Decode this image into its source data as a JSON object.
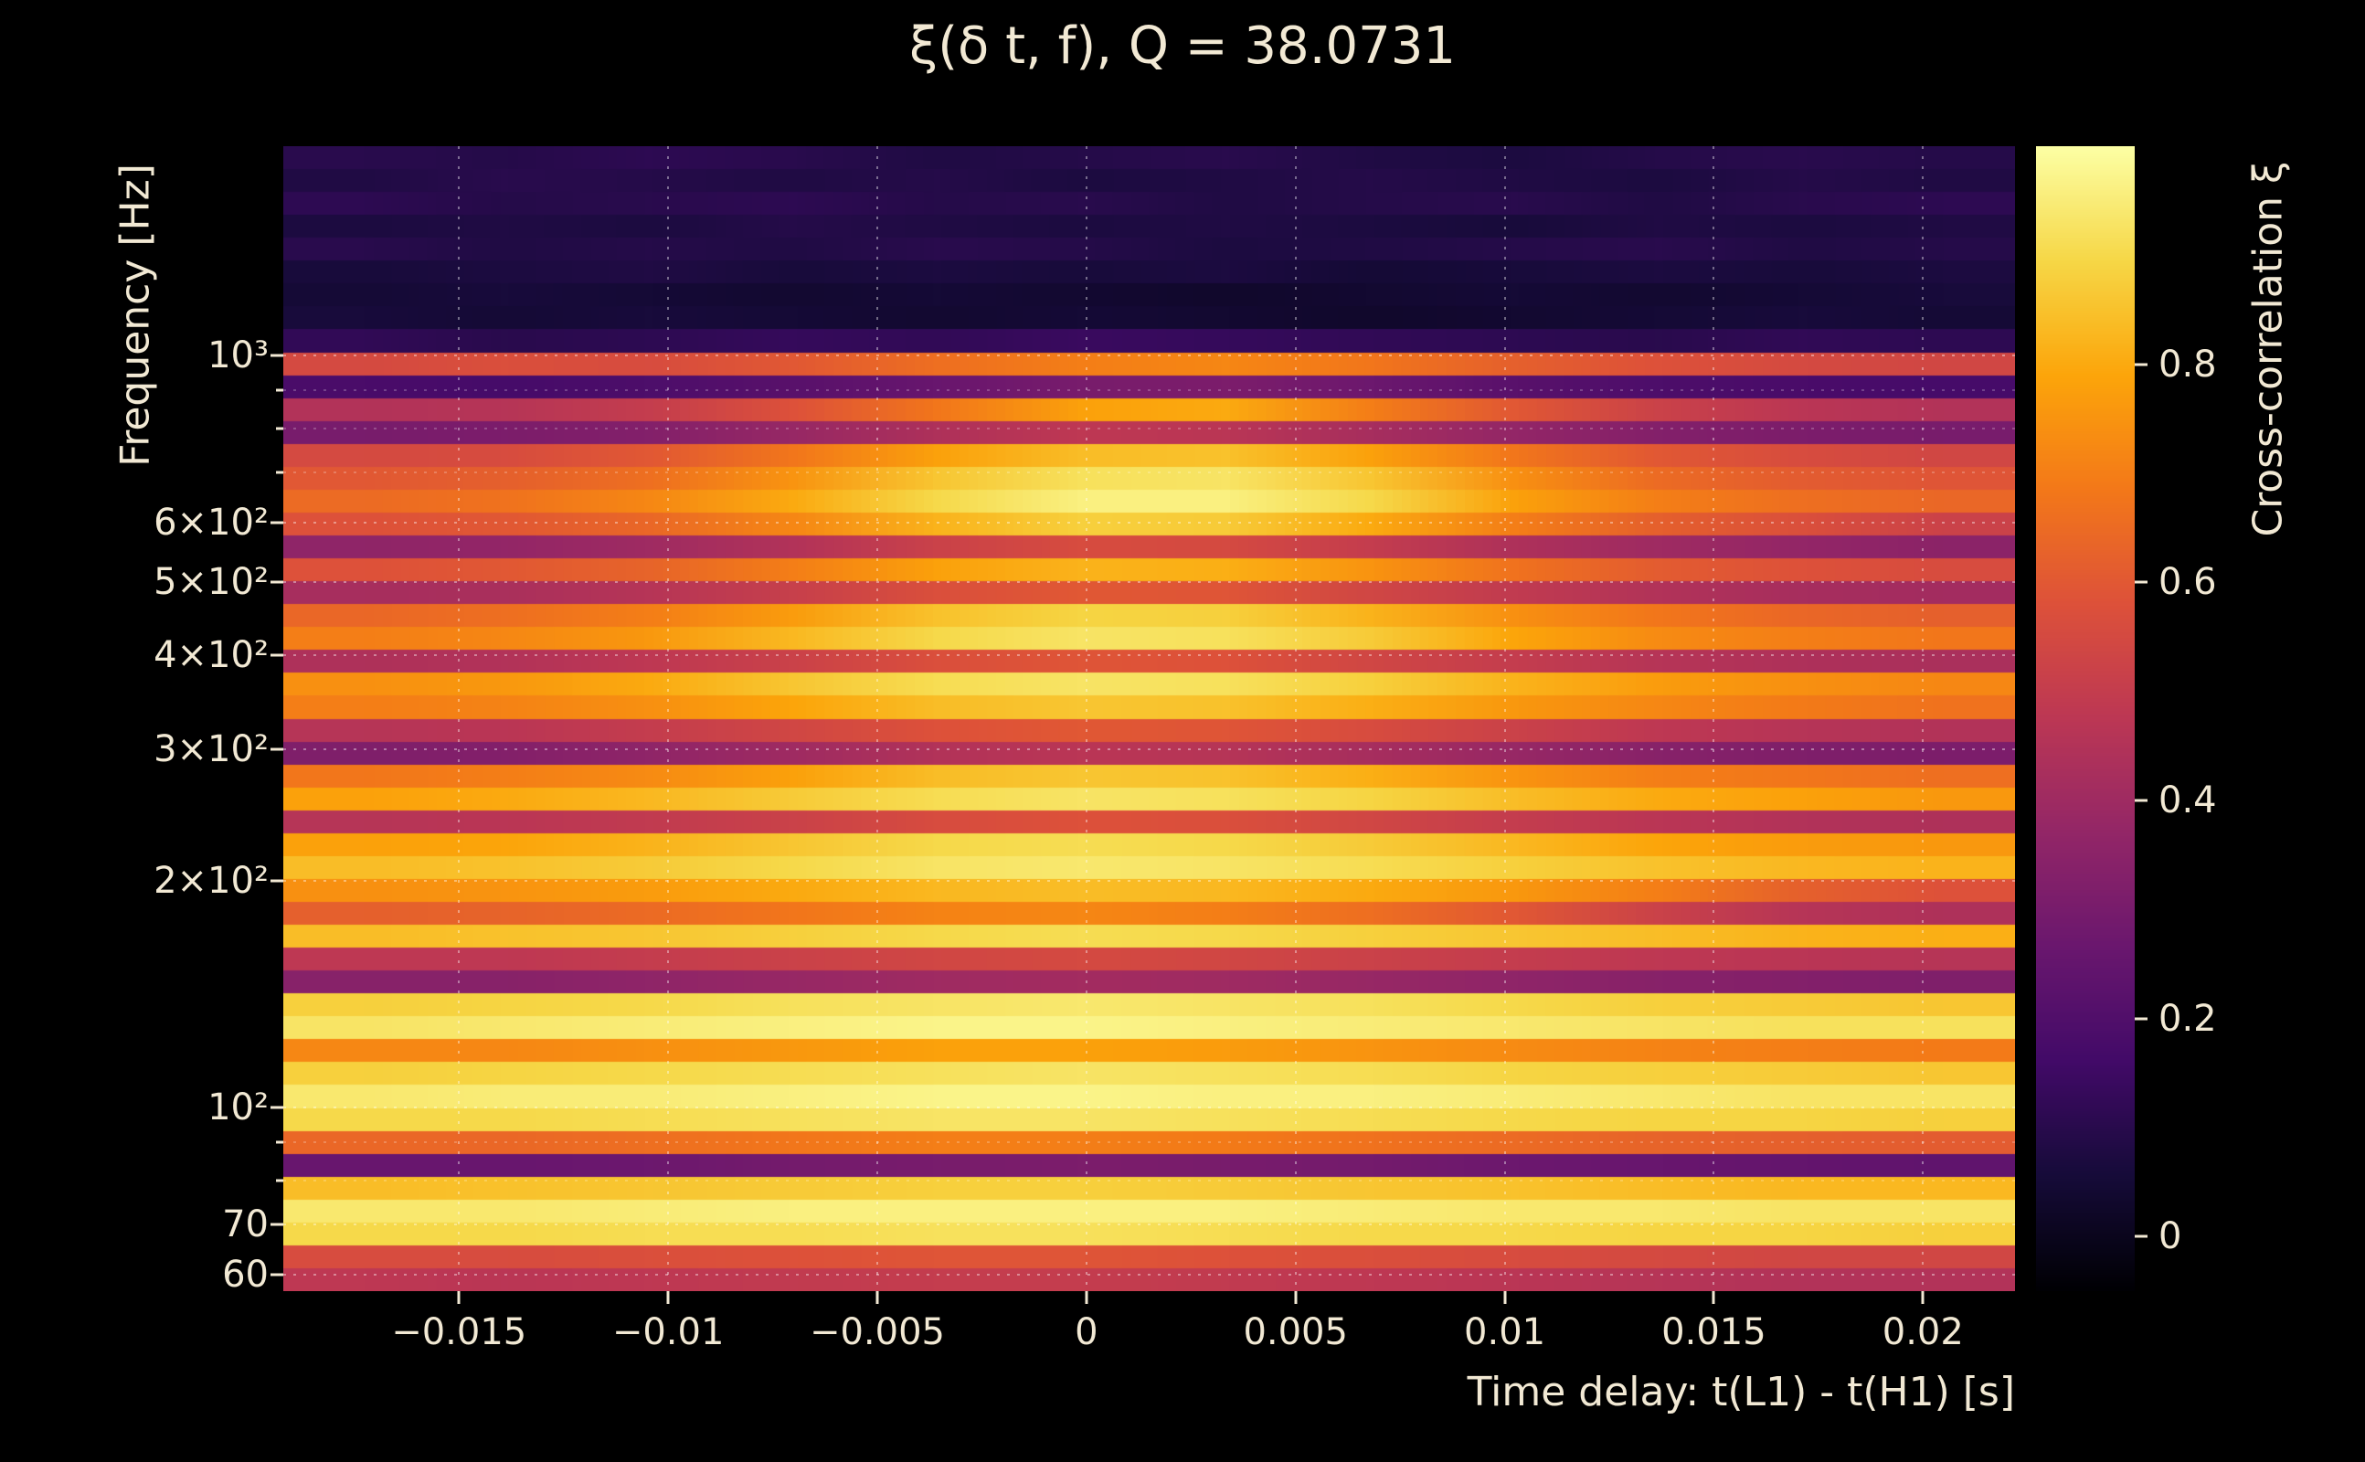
{
  "figure": {
    "background": "#000000",
    "text_color": "#f2e9d4",
    "gridline_style": "dotted"
  },
  "chart_data": {
    "type": "heatmap",
    "title": "ξ(δ t, f), Q = 38.0731",
    "xlabel": "Time delay: t(L1) - t(H1) [s]",
    "ylabel": "Frequency [Hz]",
    "colorbar_label": "Cross-correlation ξ",
    "x_range": [
      -0.0192,
      0.0222
    ],
    "y_range_hz": [
      57,
      1900
    ],
    "y_scale": "log",
    "value_range": [
      -0.05,
      1.0
    ],
    "colormap": "inferno",
    "grid": "dotted",
    "x_ticks": [
      {
        "value": -0.015,
        "label": "−0.015"
      },
      {
        "value": -0.01,
        "label": "−0.01"
      },
      {
        "value": -0.005,
        "label": "−0.005"
      },
      {
        "value": 0,
        "label": "0"
      },
      {
        "value": 0.005,
        "label": "0.005"
      },
      {
        "value": 0.01,
        "label": "0.01"
      },
      {
        "value": 0.015,
        "label": "0.015"
      },
      {
        "value": 0.02,
        "label": "0.02"
      }
    ],
    "y_ticks": [
      {
        "value": 1000,
        "label": "10³"
      },
      {
        "value": 600,
        "label": "6×10²"
      },
      {
        "value": 500,
        "label": "5×10²"
      },
      {
        "value": 400,
        "label": "4×10²"
      },
      {
        "value": 300,
        "label": "3×10²"
      },
      {
        "value": 200,
        "label": "2×10²"
      },
      {
        "value": 100,
        "label": "10²"
      },
      {
        "value": 70,
        "label": "70"
      },
      {
        "value": 60,
        "label": "60"
      }
    ],
    "y_minor_gridlines": [
      900,
      800,
      700,
      90,
      80
    ],
    "colorbar_ticks": [
      {
        "value": 0,
        "label": "0"
      },
      {
        "value": 0.2,
        "label": "0.2"
      },
      {
        "value": 0.4,
        "label": "0.4"
      },
      {
        "value": 0.6,
        "label": "0.6"
      },
      {
        "value": 0.8,
        "label": "0.8"
      }
    ],
    "colormap_anchors": [
      [
        0,
        0,
        4
      ],
      [
        22,
        11,
        57
      ],
      [
        66,
        10,
        104
      ],
      [
        106,
        23,
        110
      ],
      [
        147,
        38,
        103
      ],
      [
        188,
        55,
        84
      ],
      [
        221,
        81,
        58
      ],
      [
        243,
        120,
        25
      ],
      [
        252,
        165,
        10
      ],
      [
        246,
        215,
        70
      ],
      [
        252,
        255,
        164
      ]
    ],
    "values": [
      [
        0.1,
        0.09,
        0.11,
        0.1,
        0.08,
        0.09,
        0.1,
        0.08,
        0.07,
        0.09,
        0.1,
        0.09
      ],
      [
        0.08,
        0.1,
        0.09,
        0.08,
        0.09,
        0.07,
        0.08,
        0.09,
        0.08,
        0.07,
        0.09,
        0.08
      ],
      [
        0.11,
        0.09,
        0.1,
        0.11,
        0.09,
        0.1,
        0.08,
        0.09,
        0.1,
        0.08,
        0.1,
        0.11
      ],
      [
        0.07,
        0.08,
        0.07,
        0.09,
        0.08,
        0.07,
        0.08,
        0.07,
        0.06,
        0.08,
        0.07,
        0.08
      ],
      [
        0.1,
        0.08,
        0.09,
        0.08,
        0.1,
        0.09,
        0.07,
        0.08,
        0.09,
        0.1,
        0.08,
        0.09
      ],
      [
        0.06,
        0.07,
        0.08,
        0.06,
        0.07,
        0.06,
        0.07,
        0.05,
        0.06,
        0.07,
        0.06,
        0.07
      ],
      [
        0.05,
        0.06,
        0.05,
        0.04,
        0.05,
        0.04,
        0.03,
        0.04,
        0.05,
        0.04,
        0.05,
        0.06
      ],
      [
        0.06,
        0.05,
        0.06,
        0.05,
        0.04,
        0.05,
        0.04,
        0.03,
        0.04,
        0.05,
        0.06,
        0.05
      ],
      [
        0.12,
        0.1,
        0.11,
        0.13,
        0.12,
        0.14,
        0.13,
        0.12,
        0.11,
        0.1,
        0.12,
        0.11
      ],
      [
        0.55,
        0.57,
        0.56,
        0.6,
        0.66,
        0.7,
        0.72,
        0.68,
        0.62,
        0.58,
        0.55,
        0.54
      ],
      [
        0.18,
        0.17,
        0.19,
        0.22,
        0.26,
        0.3,
        0.31,
        0.27,
        0.22,
        0.19,
        0.18,
        0.17
      ],
      [
        0.45,
        0.46,
        0.5,
        0.58,
        0.68,
        0.78,
        0.8,
        0.7,
        0.6,
        0.52,
        0.47,
        0.45
      ],
      [
        0.3,
        0.31,
        0.33,
        0.38,
        0.44,
        0.48,
        0.47,
        0.42,
        0.37,
        0.33,
        0.31,
        0.3
      ],
      [
        0.55,
        0.56,
        0.6,
        0.68,
        0.78,
        0.84,
        0.85,
        0.78,
        0.68,
        0.6,
        0.56,
        0.54
      ],
      [
        0.6,
        0.62,
        0.66,
        0.75,
        0.86,
        0.92,
        0.93,
        0.86,
        0.74,
        0.65,
        0.61,
        0.59
      ],
      [
        0.65,
        0.67,
        0.72,
        0.8,
        0.9,
        0.96,
        0.96,
        0.9,
        0.78,
        0.7,
        0.66,
        0.64
      ],
      [
        0.58,
        0.6,
        0.64,
        0.72,
        0.82,
        0.88,
        0.87,
        0.8,
        0.7,
        0.62,
        0.57,
        0.52
      ],
      [
        0.36,
        0.37,
        0.4,
        0.45,
        0.52,
        0.56,
        0.55,
        0.5,
        0.44,
        0.4,
        0.37,
        0.35
      ],
      [
        0.58,
        0.6,
        0.63,
        0.7,
        0.78,
        0.82,
        0.81,
        0.75,
        0.67,
        0.61,
        0.58,
        0.56
      ],
      [
        0.42,
        0.43,
        0.46,
        0.51,
        0.57,
        0.6,
        0.59,
        0.54,
        0.49,
        0.45,
        0.42,
        0.41
      ],
      [
        0.64,
        0.66,
        0.7,
        0.77,
        0.85,
        0.89,
        0.88,
        0.82,
        0.74,
        0.68,
        0.64,
        0.62
      ],
      [
        0.7,
        0.72,
        0.76,
        0.83,
        0.9,
        0.93,
        0.92,
        0.87,
        0.79,
        0.73,
        0.7,
        0.68
      ],
      [
        0.44,
        0.45,
        0.48,
        0.52,
        0.57,
        0.59,
        0.58,
        0.54,
        0.5,
        0.46,
        0.44,
        0.43
      ],
      [
        0.74,
        0.76,
        0.8,
        0.86,
        0.91,
        0.93,
        0.92,
        0.88,
        0.82,
        0.77,
        0.74,
        0.72
      ],
      [
        0.7,
        0.71,
        0.74,
        0.79,
        0.84,
        0.86,
        0.85,
        0.81,
        0.76,
        0.72,
        0.69,
        0.67
      ],
      [
        0.46,
        0.47,
        0.5,
        0.54,
        0.58,
        0.6,
        0.59,
        0.56,
        0.52,
        0.48,
        0.46,
        0.45
      ],
      [
        0.32,
        0.33,
        0.36,
        0.4,
        0.45,
        0.47,
        0.46,
        0.42,
        0.38,
        0.34,
        0.32,
        0.31
      ],
      [
        0.68,
        0.7,
        0.73,
        0.78,
        0.84,
        0.86,
        0.85,
        0.81,
        0.75,
        0.7,
        0.68,
        0.66
      ],
      [
        0.78,
        0.8,
        0.83,
        0.87,
        0.91,
        0.93,
        0.92,
        0.89,
        0.84,
        0.8,
        0.78,
        0.76
      ],
      [
        0.46,
        0.47,
        0.49,
        0.52,
        0.56,
        0.58,
        0.57,
        0.54,
        0.5,
        0.47,
        0.45,
        0.44
      ],
      [
        0.78,
        0.79,
        0.82,
        0.86,
        0.9,
        0.91,
        0.9,
        0.87,
        0.83,
        0.79,
        0.77,
        0.76
      ],
      [
        0.84,
        0.85,
        0.87,
        0.9,
        0.93,
        0.94,
        0.93,
        0.91,
        0.88,
        0.85,
        0.83,
        0.82
      ],
      [
        0.74,
        0.75,
        0.77,
        0.8,
        0.83,
        0.84,
        0.83,
        0.8,
        0.76,
        0.7,
        0.62,
        0.58
      ],
      [
        0.62,
        0.63,
        0.65,
        0.68,
        0.71,
        0.72,
        0.7,
        0.66,
        0.6,
        0.52,
        0.46,
        0.44
      ],
      [
        0.84,
        0.85,
        0.86,
        0.88,
        0.9,
        0.91,
        0.9,
        0.88,
        0.86,
        0.84,
        0.82,
        0.81
      ],
      [
        0.48,
        0.48,
        0.5,
        0.52,
        0.54,
        0.55,
        0.54,
        0.52,
        0.5,
        0.48,
        0.47,
        0.46
      ],
      [
        0.34,
        0.34,
        0.36,
        0.38,
        0.4,
        0.41,
        0.4,
        0.38,
        0.36,
        0.34,
        0.33,
        0.32
      ],
      [
        0.88,
        0.89,
        0.9,
        0.92,
        0.93,
        0.94,
        0.93,
        0.92,
        0.9,
        0.88,
        0.87,
        0.86
      ],
      [
        0.93,
        0.94,
        0.95,
        0.96,
        0.97,
        0.97,
        0.96,
        0.95,
        0.94,
        0.93,
        0.92,
        0.92
      ],
      [
        0.72,
        0.72,
        0.74,
        0.76,
        0.78,
        0.78,
        0.77,
        0.75,
        0.73,
        0.71,
        0.7,
        0.69
      ],
      [
        0.88,
        0.89,
        0.9,
        0.91,
        0.92,
        0.93,
        0.92,
        0.91,
        0.89,
        0.88,
        0.87,
        0.86
      ],
      [
        0.94,
        0.95,
        0.95,
        0.96,
        0.97,
        0.97,
        0.96,
        0.96,
        0.95,
        0.94,
        0.93,
        0.93
      ],
      [
        0.9,
        0.9,
        0.91,
        0.92,
        0.93,
        0.93,
        0.92,
        0.91,
        0.9,
        0.89,
        0.89,
        0.88
      ],
      [
        0.64,
        0.64,
        0.66,
        0.68,
        0.7,
        0.7,
        0.69,
        0.67,
        0.65,
        0.63,
        0.62,
        0.61
      ],
      [
        0.26,
        0.26,
        0.27,
        0.29,
        0.3,
        0.31,
        0.3,
        0.29,
        0.27,
        0.26,
        0.25,
        0.24
      ],
      [
        0.84,
        0.85,
        0.86,
        0.87,
        0.88,
        0.88,
        0.87,
        0.86,
        0.85,
        0.84,
        0.83,
        0.83
      ],
      [
        0.94,
        0.94,
        0.95,
        0.96,
        0.96,
        0.96,
        0.96,
        0.95,
        0.94,
        0.94,
        0.93,
        0.93
      ],
      [
        0.9,
        0.9,
        0.91,
        0.91,
        0.92,
        0.92,
        0.91,
        0.9,
        0.9,
        0.89,
        0.89,
        0.88
      ],
      [
        0.56,
        0.56,
        0.57,
        0.58,
        0.59,
        0.59,
        0.58,
        0.57,
        0.56,
        0.55,
        0.54,
        0.54
      ],
      [
        0.48,
        0.47,
        0.48,
        0.49,
        0.5,
        0.5,
        0.49,
        0.48,
        0.47,
        0.46,
        0.45,
        0.45
      ]
    ]
  }
}
